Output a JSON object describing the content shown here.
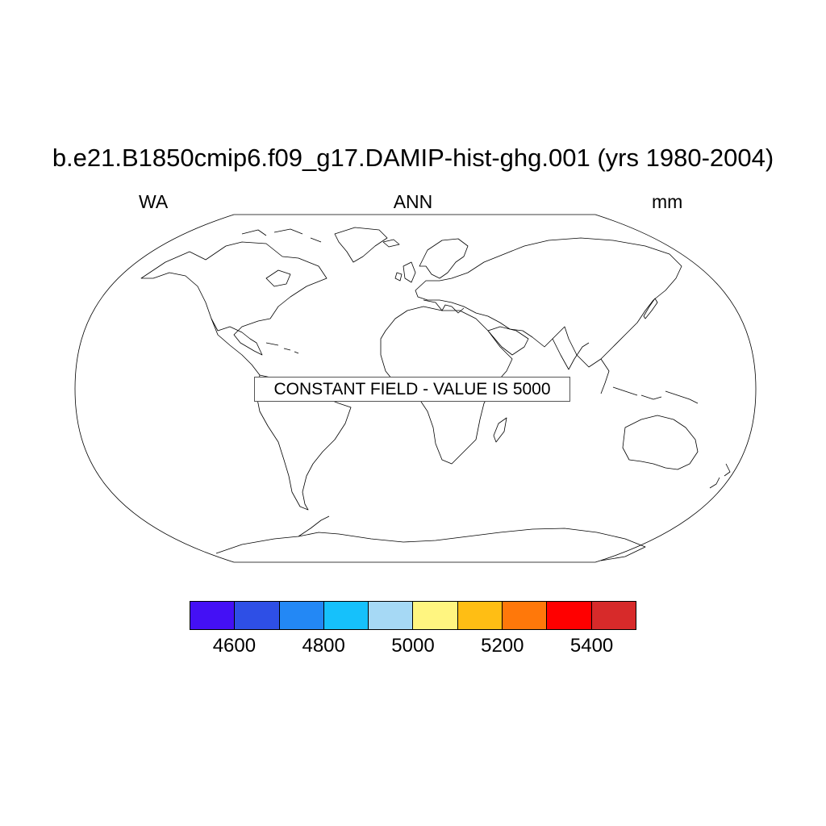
{
  "figure": {
    "title": "b.e21.B1850cmip6.f09_g17.DAMIP-hist-ghg.001 (yrs 1980-2004)",
    "left_subtitle": "WA",
    "center_subtitle": "ANN",
    "right_subtitle": "mm",
    "annotation": "CONSTANT FIELD - VALUE IS 5000"
  },
  "map": {
    "projection": "Robinson",
    "fill": "none",
    "coastline_color": "#000000"
  },
  "colorbar": {
    "colors": [
      "#4410f5",
      "#2e4fe6",
      "#2388f5",
      "#16c1fb",
      "#a6d9f5",
      "#fff580",
      "#ffbe14",
      "#ff780a",
      "#ff0000",
      "#d72a2a"
    ],
    "labels": [
      "4600",
      "4800",
      "5000",
      "5200",
      "5400"
    ],
    "boundaries": [
      4600,
      4700,
      4800,
      4900,
      5000,
      5100,
      5200,
      5300,
      5400
    ]
  }
}
